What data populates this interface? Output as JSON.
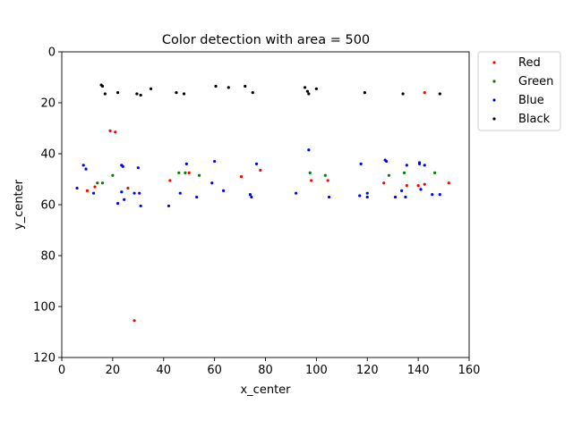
{
  "chart_data": {
    "type": "scatter",
    "title": "Color detection with area = 500",
    "xlabel": "x_center",
    "ylabel": "y_center",
    "xlim": [
      0,
      160
    ],
    "ylim": [
      120,
      0
    ],
    "y_inverted": true,
    "x_ticks": [
      0,
      20,
      40,
      60,
      80,
      100,
      120,
      140,
      160
    ],
    "y_ticks": [
      0,
      20,
      40,
      60,
      80,
      100,
      120
    ],
    "grid": false,
    "legend_position": "outside-top-right",
    "series": [
      {
        "name": "Red",
        "color": "#ff0000",
        "points": [
          [
            19,
            31
          ],
          [
            21,
            31.5
          ],
          [
            10,
            54.5
          ],
          [
            13,
            53
          ],
          [
            26,
            53.5
          ],
          [
            28.5,
            105.5
          ],
          [
            42.5,
            50.5
          ],
          [
            50,
            47.5
          ],
          [
            70.5,
            49
          ],
          [
            78,
            46.5
          ],
          [
            98,
            50.5
          ],
          [
            104.5,
            50.5
          ],
          [
            126.5,
            51.5
          ],
          [
            135.5,
            52.5
          ],
          [
            140,
            52.5
          ],
          [
            142.5,
            52
          ],
          [
            142.5,
            16
          ],
          [
            152,
            51.5
          ]
        ]
      },
      {
        "name": "Green",
        "color": "#008000",
        "points": [
          [
            14,
            51.5
          ],
          [
            16,
            51.5
          ],
          [
            20,
            48.5
          ],
          [
            46,
            47.5
          ],
          [
            48.5,
            47.5
          ],
          [
            54,
            48.5
          ],
          [
            97.5,
            47.5
          ],
          [
            103.5,
            48.5
          ],
          [
            128.5,
            48.5
          ],
          [
            134.5,
            47.5
          ],
          [
            146.5,
            47.5
          ]
        ]
      },
      {
        "name": "Blue",
        "color": "#0000ff",
        "points": [
          [
            6,
            53.5
          ],
          [
            8.5,
            44.5
          ],
          [
            9.5,
            46
          ],
          [
            12.5,
            55.5
          ],
          [
            22,
            59.5
          ],
          [
            23.5,
            44.5
          ],
          [
            24,
            45
          ],
          [
            23.5,
            55
          ],
          [
            24.5,
            58
          ],
          [
            28.5,
            55.5
          ],
          [
            30,
            45.5
          ],
          [
            30.5,
            55.5
          ],
          [
            31,
            60.5
          ],
          [
            42,
            60.5
          ],
          [
            46.5,
            55.5
          ],
          [
            49,
            44
          ],
          [
            53,
            57
          ],
          [
            59,
            51.5
          ],
          [
            60,
            43
          ],
          [
            63.5,
            54.5
          ],
          [
            74,
            56
          ],
          [
            74.5,
            57
          ],
          [
            76.5,
            44
          ],
          [
            92,
            55.5
          ],
          [
            97,
            38.5
          ],
          [
            105,
            57
          ],
          [
            117,
            56.5
          ],
          [
            117.5,
            44
          ],
          [
            120,
            55.5
          ],
          [
            120,
            57
          ],
          [
            127,
            42.5
          ],
          [
            127.5,
            43
          ],
          [
            131,
            57
          ],
          [
            133.5,
            54.5
          ],
          [
            135,
            57
          ],
          [
            135.5,
            44.5
          ],
          [
            140.5,
            44
          ],
          [
            141,
            54
          ],
          [
            140.5,
            43.5
          ],
          [
            142.5,
            44.5
          ],
          [
            145.5,
            56
          ],
          [
            148.5,
            56
          ]
        ]
      },
      {
        "name": "Black",
        "color": "#000000",
        "points": [
          [
            15.5,
            13
          ],
          [
            16,
            13.5
          ],
          [
            17,
            16.5
          ],
          [
            22,
            16
          ],
          [
            29.5,
            16.5
          ],
          [
            31,
            17
          ],
          [
            35,
            14.5
          ],
          [
            45,
            16
          ],
          [
            48,
            16.5
          ],
          [
            60.5,
            13.5
          ],
          [
            65.5,
            14
          ],
          [
            72,
            13.5
          ],
          [
            75,
            16
          ],
          [
            95.5,
            14
          ],
          [
            96.5,
            15.5
          ],
          [
            97,
            16.5
          ],
          [
            100,
            14.5
          ],
          [
            119,
            16
          ],
          [
            134,
            16.5
          ],
          [
            148.5,
            16.5
          ]
        ]
      }
    ]
  }
}
